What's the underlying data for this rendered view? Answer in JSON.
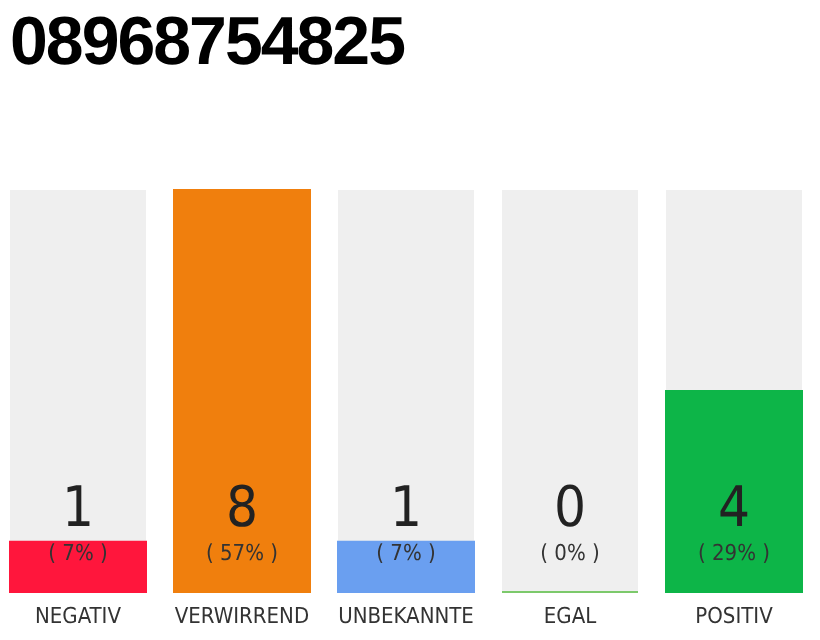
{
  "chart_data": {
    "type": "bar",
    "title": "08968754825",
    "categories": [
      "NEGATIV",
      "VERWIRREND",
      "UNBEKANNTE",
      "EGAL",
      "POSITIV"
    ],
    "values": [
      1,
      8,
      1,
      0,
      4
    ],
    "colors": [
      "#ff163c",
      "#f07f0d",
      "#6a9ff0",
      "#7cc96b",
      "#0db548"
    ],
    "tick_labels": "x",
    "legend": false,
    "data_labels": true,
    "annotations": [
      "( 7% )",
      "( 57% )",
      "( 7% )",
      "( 0% )",
      "( 29% )"
    ]
  }
}
